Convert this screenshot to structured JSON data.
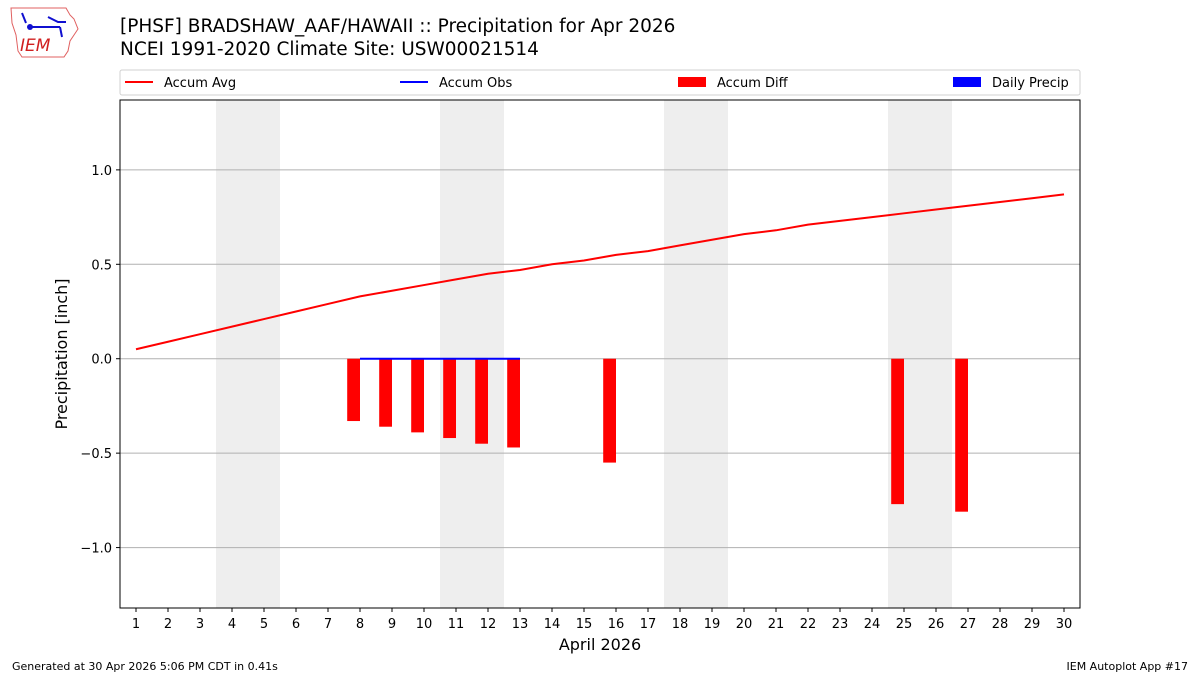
{
  "header": {
    "title_line1": "[PHSF] BRADSHAW_AAF/HAWAII :: Precipitation for Apr 2026",
    "title_line2": "NCEI 1991-2020 Climate Site: USW00021514",
    "logo_text": "IEM"
  },
  "footer": {
    "generated": "Generated at 30 Apr 2026 5:06 PM CDT in 0.41s",
    "app": "IEM Autoplot App #17"
  },
  "chart_data": {
    "type": "bar",
    "xlabel": "April 2026",
    "ylabel": "Precipitation [inch]",
    "xlim": [
      0.5,
      30.5
    ],
    "ylim": [
      -1.32,
      1.37
    ],
    "grid": "y",
    "legend_placement": "top",
    "x_ticks": [
      1,
      2,
      3,
      4,
      5,
      6,
      7,
      8,
      9,
      10,
      11,
      12,
      13,
      14,
      15,
      16,
      17,
      18,
      19,
      20,
      21,
      22,
      23,
      24,
      25,
      26,
      27,
      28,
      29,
      30
    ],
    "y_ticks": [
      {
        "v": 1.0,
        "label": "1.0"
      },
      {
        "v": 0.5,
        "label": "0.5"
      },
      {
        "v": 0.0,
        "label": "0.0"
      },
      {
        "v": -0.5,
        "label": "−0.5"
      },
      {
        "v": -1.0,
        "label": "−1.0"
      }
    ],
    "weekend_spans": [
      [
        3.5,
        5.5
      ],
      [
        10.5,
        12.5
      ],
      [
        17.5,
        19.5
      ],
      [
        24.5,
        26.5
      ]
    ],
    "legend": [
      {
        "name": "Accum Avg",
        "kind": "line",
        "color": "#ff0000"
      },
      {
        "name": "Accum Obs",
        "kind": "line",
        "color": "#0000ff"
      },
      {
        "name": "Accum Diff",
        "kind": "bar",
        "color": "#ff0000"
      },
      {
        "name": "Daily Precip",
        "kind": "bar",
        "color": "#0000ff"
      }
    ],
    "accum_avg": {
      "x": [
        1,
        2,
        3,
        4,
        5,
        6,
        7,
        8,
        9,
        10,
        11,
        12,
        13,
        14,
        15,
        16,
        17,
        18,
        19,
        20,
        21,
        22,
        23,
        24,
        25,
        26,
        27,
        28,
        29,
        30
      ],
      "y": [
        0.05,
        0.09,
        0.13,
        0.17,
        0.21,
        0.25,
        0.29,
        0.33,
        0.36,
        0.39,
        0.42,
        0.45,
        0.47,
        0.5,
        0.52,
        0.55,
        0.57,
        0.6,
        0.63,
        0.66,
        0.68,
        0.71,
        0.73,
        0.75,
        0.77,
        0.79,
        0.81,
        0.83,
        0.85,
        0.87
      ]
    },
    "accum_obs": {
      "x": [
        8,
        9,
        10,
        11,
        12,
        13
      ],
      "y": [
        0,
        0,
        0,
        0,
        0,
        0
      ]
    },
    "accum_diff": {
      "x": [
        8,
        9,
        10,
        11,
        12,
        13,
        16,
        25,
        27
      ],
      "y": [
        -0.33,
        -0.36,
        -0.39,
        -0.42,
        -0.45,
        -0.47,
        -0.55,
        -0.77,
        -0.81
      ]
    },
    "daily_precip": {
      "x": [],
      "y": []
    }
  }
}
